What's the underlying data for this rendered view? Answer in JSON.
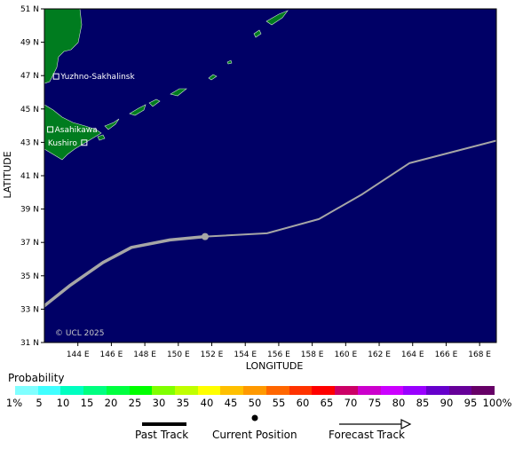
{
  "map": {
    "ocean_color": "#000066",
    "land_color": "#007c1f",
    "track_color": "#a6a6a6",
    "copyright": "© UCL 2025",
    "lon_ticks": [
      "144 E",
      "146 E",
      "148 E",
      "150 E",
      "152 E",
      "154 E",
      "156 E",
      "158 E",
      "160 E",
      "162 E",
      "164 E",
      "166 E",
      "168 E"
    ],
    "lat_ticks": [
      "51 N",
      "49 N",
      "47 N",
      "45 N",
      "43 N",
      "41 N",
      "39 N",
      "37 N",
      "35 N",
      "33 N",
      "31 N"
    ],
    "x_axis_title": "LONGITUDE",
    "y_axis_title": "LATITUDE",
    "extent": {
      "lon": [
        142.0,
        169.0
      ],
      "lat": [
        31.0,
        51.0
      ]
    },
    "cities": [
      {
        "name": "Yuzhno-Sakhalinsk",
        "lon": 142.7,
        "lat": 46.95
      },
      {
        "name": "Asahikawa",
        "lon": 142.35,
        "lat": 43.77
      },
      {
        "name": "Kushiro",
        "lon": 144.38,
        "lat": 42.98
      }
    ],
    "past_track": [
      {
        "lon": 142.0,
        "lat": 33.2
      },
      {
        "lon": 143.5,
        "lat": 34.4
      },
      {
        "lon": 145.5,
        "lat": 35.8
      },
      {
        "lon": 147.2,
        "lat": 36.7
      },
      {
        "lon": 149.5,
        "lat": 37.15
      },
      {
        "lon": 151.6,
        "lat": 37.35
      }
    ],
    "current_position": {
      "lon": 151.6,
      "lat": 37.35
    },
    "forecast_track": [
      {
        "lon": 151.6,
        "lat": 37.35
      },
      {
        "lon": 155.3,
        "lat": 37.55
      },
      {
        "lon": 158.4,
        "lat": 38.4
      },
      {
        "lon": 161.0,
        "lat": 39.9
      },
      {
        "lon": 163.8,
        "lat": 41.75
      },
      {
        "lon": 169.0,
        "lat": 43.1
      }
    ]
  },
  "probability": {
    "title": "Probability",
    "labels": [
      "1%",
      "5",
      "10",
      "15",
      "20",
      "25",
      "30",
      "35",
      "40",
      "45",
      "50",
      "55",
      "60",
      "65",
      "70",
      "75",
      "80",
      "85",
      "90",
      "95",
      "100%"
    ],
    "colors": [
      "#80ffff",
      "#40ffff",
      "#00ffc0",
      "#00ff80",
      "#00ff40",
      "#00ff00",
      "#80ff00",
      "#c0ff00",
      "#ffff00",
      "#ffc000",
      "#ff9900",
      "#ff6600",
      "#ff3300",
      "#ff0000",
      "#cc0066",
      "#cc00cc",
      "#cc00ff",
      "#9900ff",
      "#6600cc",
      "#660099",
      "#660066"
    ]
  },
  "legend": {
    "past_track": "Past Track",
    "current_position": "Current Position",
    "forecast_track": "Forecast Track"
  }
}
